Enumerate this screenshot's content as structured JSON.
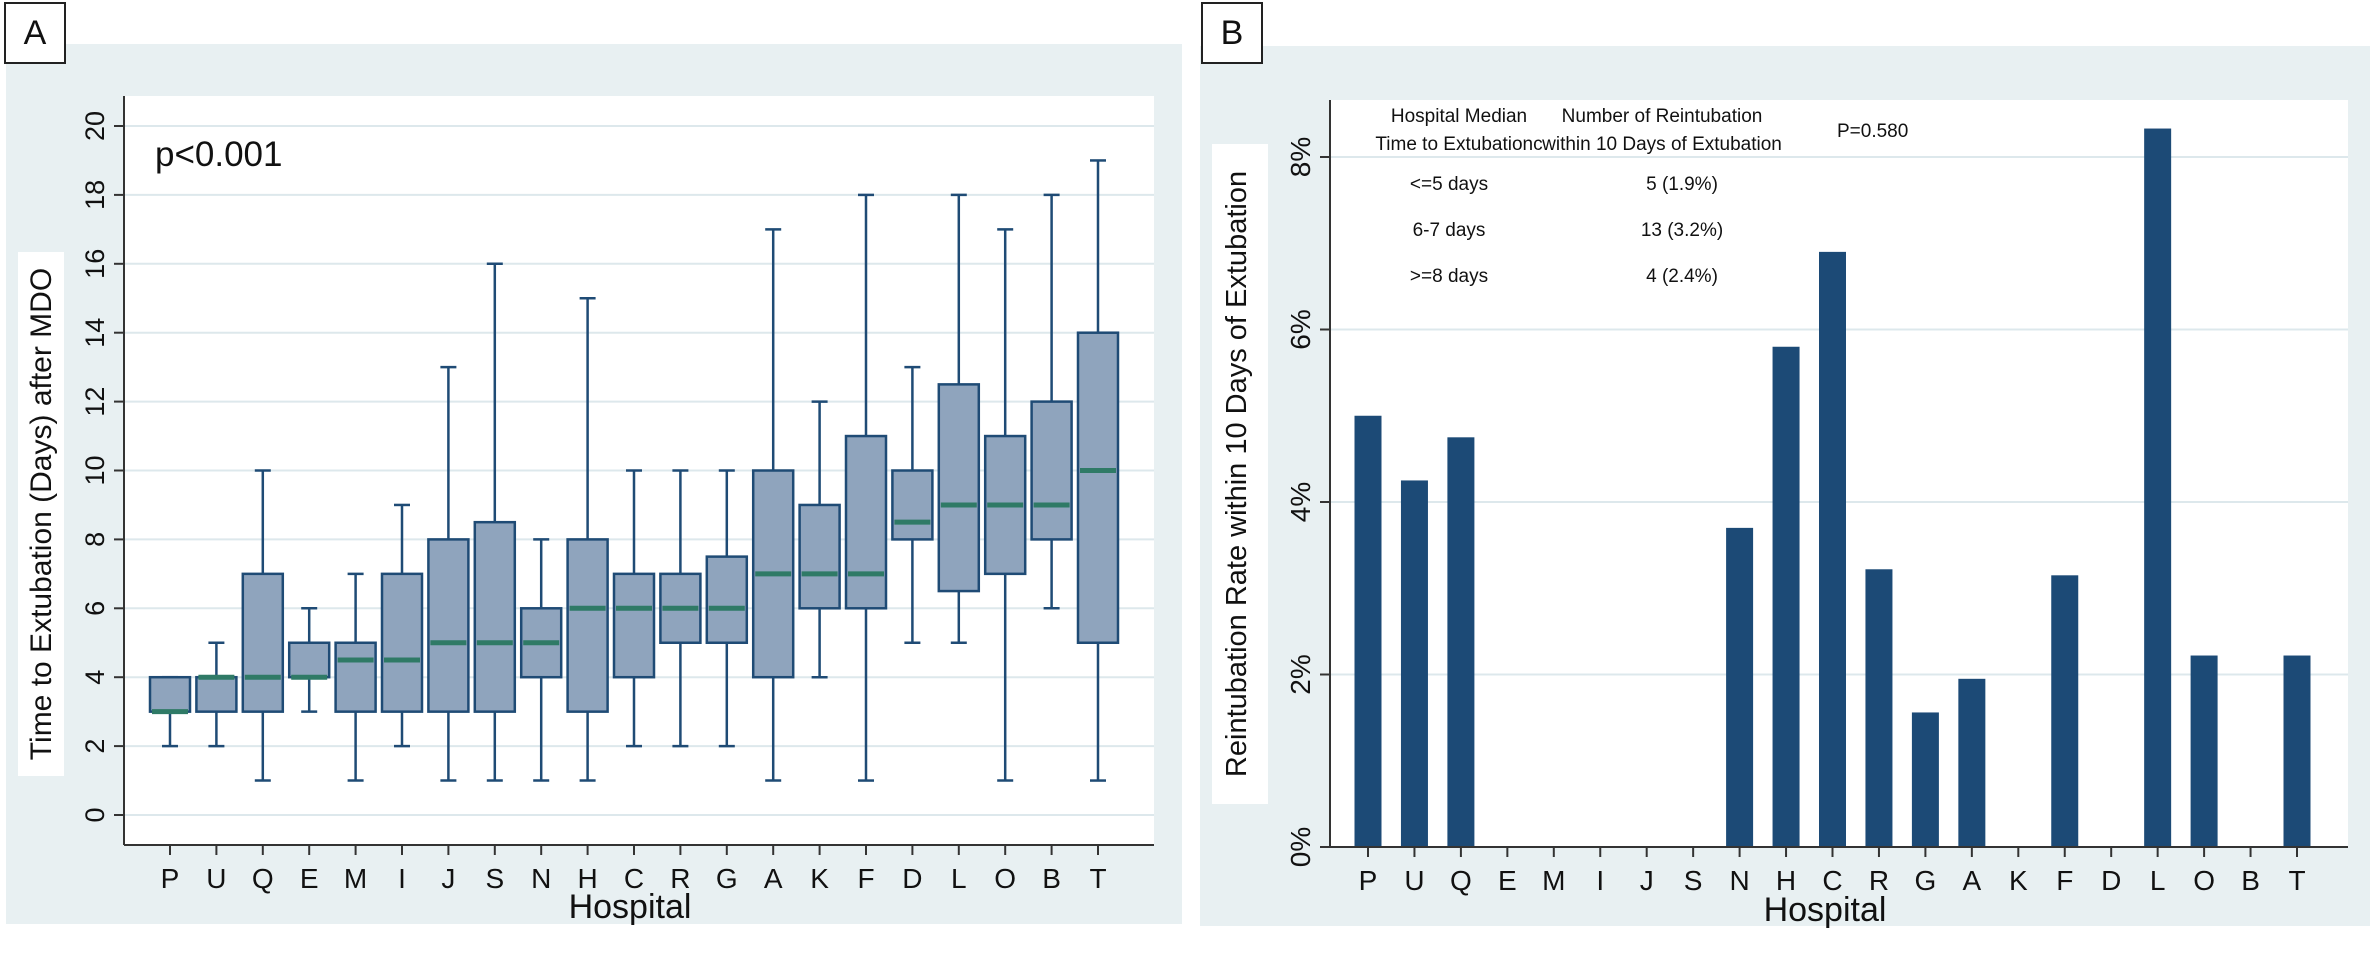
{
  "panel_labels": {
    "a": "A",
    "b": "B"
  },
  "colors": {
    "box_fill": "#8fa4bd",
    "box_stroke": "#1f4b75",
    "median": "#2f7a66",
    "bar": "#1c4a76",
    "panel_bg": "#e8f0f2",
    "grid": "#dde8ec"
  },
  "chart_data": [
    {
      "type": "box",
      "xlabel": "Hospital",
      "ylabel": "Time to Extubation (Days) after MDO",
      "ylim": [
        0,
        20
      ],
      "yticks": [
        "0",
        "2",
        "4",
        "6",
        "8",
        "10",
        "12",
        "14",
        "16",
        "18",
        "20"
      ],
      "annotation": "p<0.001",
      "categories": [
        "P",
        "U",
        "Q",
        "E",
        "M",
        "I",
        "J",
        "S",
        "N",
        "H",
        "C",
        "R",
        "G",
        "A",
        "K",
        "F",
        "D",
        "L",
        "O",
        "B",
        "T"
      ],
      "boxes": [
        {
          "min": 2,
          "q1": 3,
          "median": 3,
          "q3": 4,
          "max": 4
        },
        {
          "min": 2,
          "q1": 3,
          "median": 4,
          "q3": 4,
          "max": 5
        },
        {
          "min": 1,
          "q1": 3,
          "median": 4,
          "q3": 7,
          "max": 10
        },
        {
          "min": 3,
          "q1": 4,
          "median": 4,
          "q3": 5,
          "max": 6
        },
        {
          "min": 1,
          "q1": 3,
          "median": 4.5,
          "q3": 5,
          "max": 7
        },
        {
          "min": 2,
          "q1": 3,
          "median": 4.5,
          "q3": 7,
          "max": 9
        },
        {
          "min": 1,
          "q1": 3,
          "median": 5,
          "q3": 8,
          "max": 13
        },
        {
          "min": 1,
          "q1": 3,
          "median": 5,
          "q3": 8.5,
          "max": 16
        },
        {
          "min": 1,
          "q1": 4,
          "median": 5,
          "q3": 6,
          "max": 8
        },
        {
          "min": 1,
          "q1": 3,
          "median": 6,
          "q3": 8,
          "max": 15
        },
        {
          "min": 2,
          "q1": 4,
          "median": 6,
          "q3": 7,
          "max": 10
        },
        {
          "min": 2,
          "q1": 5,
          "median": 6,
          "q3": 7,
          "max": 10
        },
        {
          "min": 2,
          "q1": 5,
          "median": 6,
          "q3": 7.5,
          "max": 10
        },
        {
          "min": 1,
          "q1": 4,
          "median": 7,
          "q3": 10,
          "max": 17
        },
        {
          "min": 4,
          "q1": 6,
          "median": 7,
          "q3": 9,
          "max": 12
        },
        {
          "min": 1,
          "q1": 6,
          "median": 7,
          "q3": 11,
          "max": 18
        },
        {
          "min": 5,
          "q1": 8,
          "median": 8.5,
          "q3": 10,
          "max": 13
        },
        {
          "min": 5,
          "q1": 6.5,
          "median": 9,
          "q3": 12.5,
          "max": 18
        },
        {
          "min": 1,
          "q1": 7,
          "median": 9,
          "q3": 11,
          "max": 17
        },
        {
          "min": 6,
          "q1": 8,
          "median": 9,
          "q3": 12,
          "max": 18
        },
        {
          "min": 1,
          "q1": 5,
          "median": 10,
          "q3": 14,
          "max": 19
        }
      ]
    },
    {
      "type": "bar",
      "xlabel": "Hospital",
      "ylabel": "Reintubation Rate within 10 Days of Extubation",
      "ylim": [
        0,
        8.6
      ],
      "yticks": [
        "0%",
        "2%",
        "4%",
        "6%",
        "8%"
      ],
      "categories": [
        "P",
        "U",
        "Q",
        "E",
        "M",
        "I",
        "J",
        "S",
        "N",
        "H",
        "C",
        "R",
        "G",
        "A",
        "K",
        "F",
        "D",
        "L",
        "O",
        "B",
        "T"
      ],
      "values": [
        5.0,
        4.25,
        4.75,
        0,
        0,
        0,
        0,
        0,
        3.7,
        5.8,
        6.9,
        3.22,
        1.56,
        1.95,
        0,
        3.15,
        0,
        8.33,
        2.22,
        0,
        2.22
      ],
      "annotation_table": {
        "header_col1": [
          "Hospital Median",
          "Time to Extubationc"
        ],
        "header_col2": [
          "Number of Reintubation",
          "within 10 Days of Extubation"
        ],
        "p_value": "P=0.580",
        "rows": [
          {
            "group": "<=5 days",
            "count": "5 (1.9%)"
          },
          {
            "group": "6-7 days",
            "count": "13 (3.2%)"
          },
          {
            "group": ">=8 days",
            "count": "4 (2.4%)"
          }
        ]
      }
    }
  ]
}
